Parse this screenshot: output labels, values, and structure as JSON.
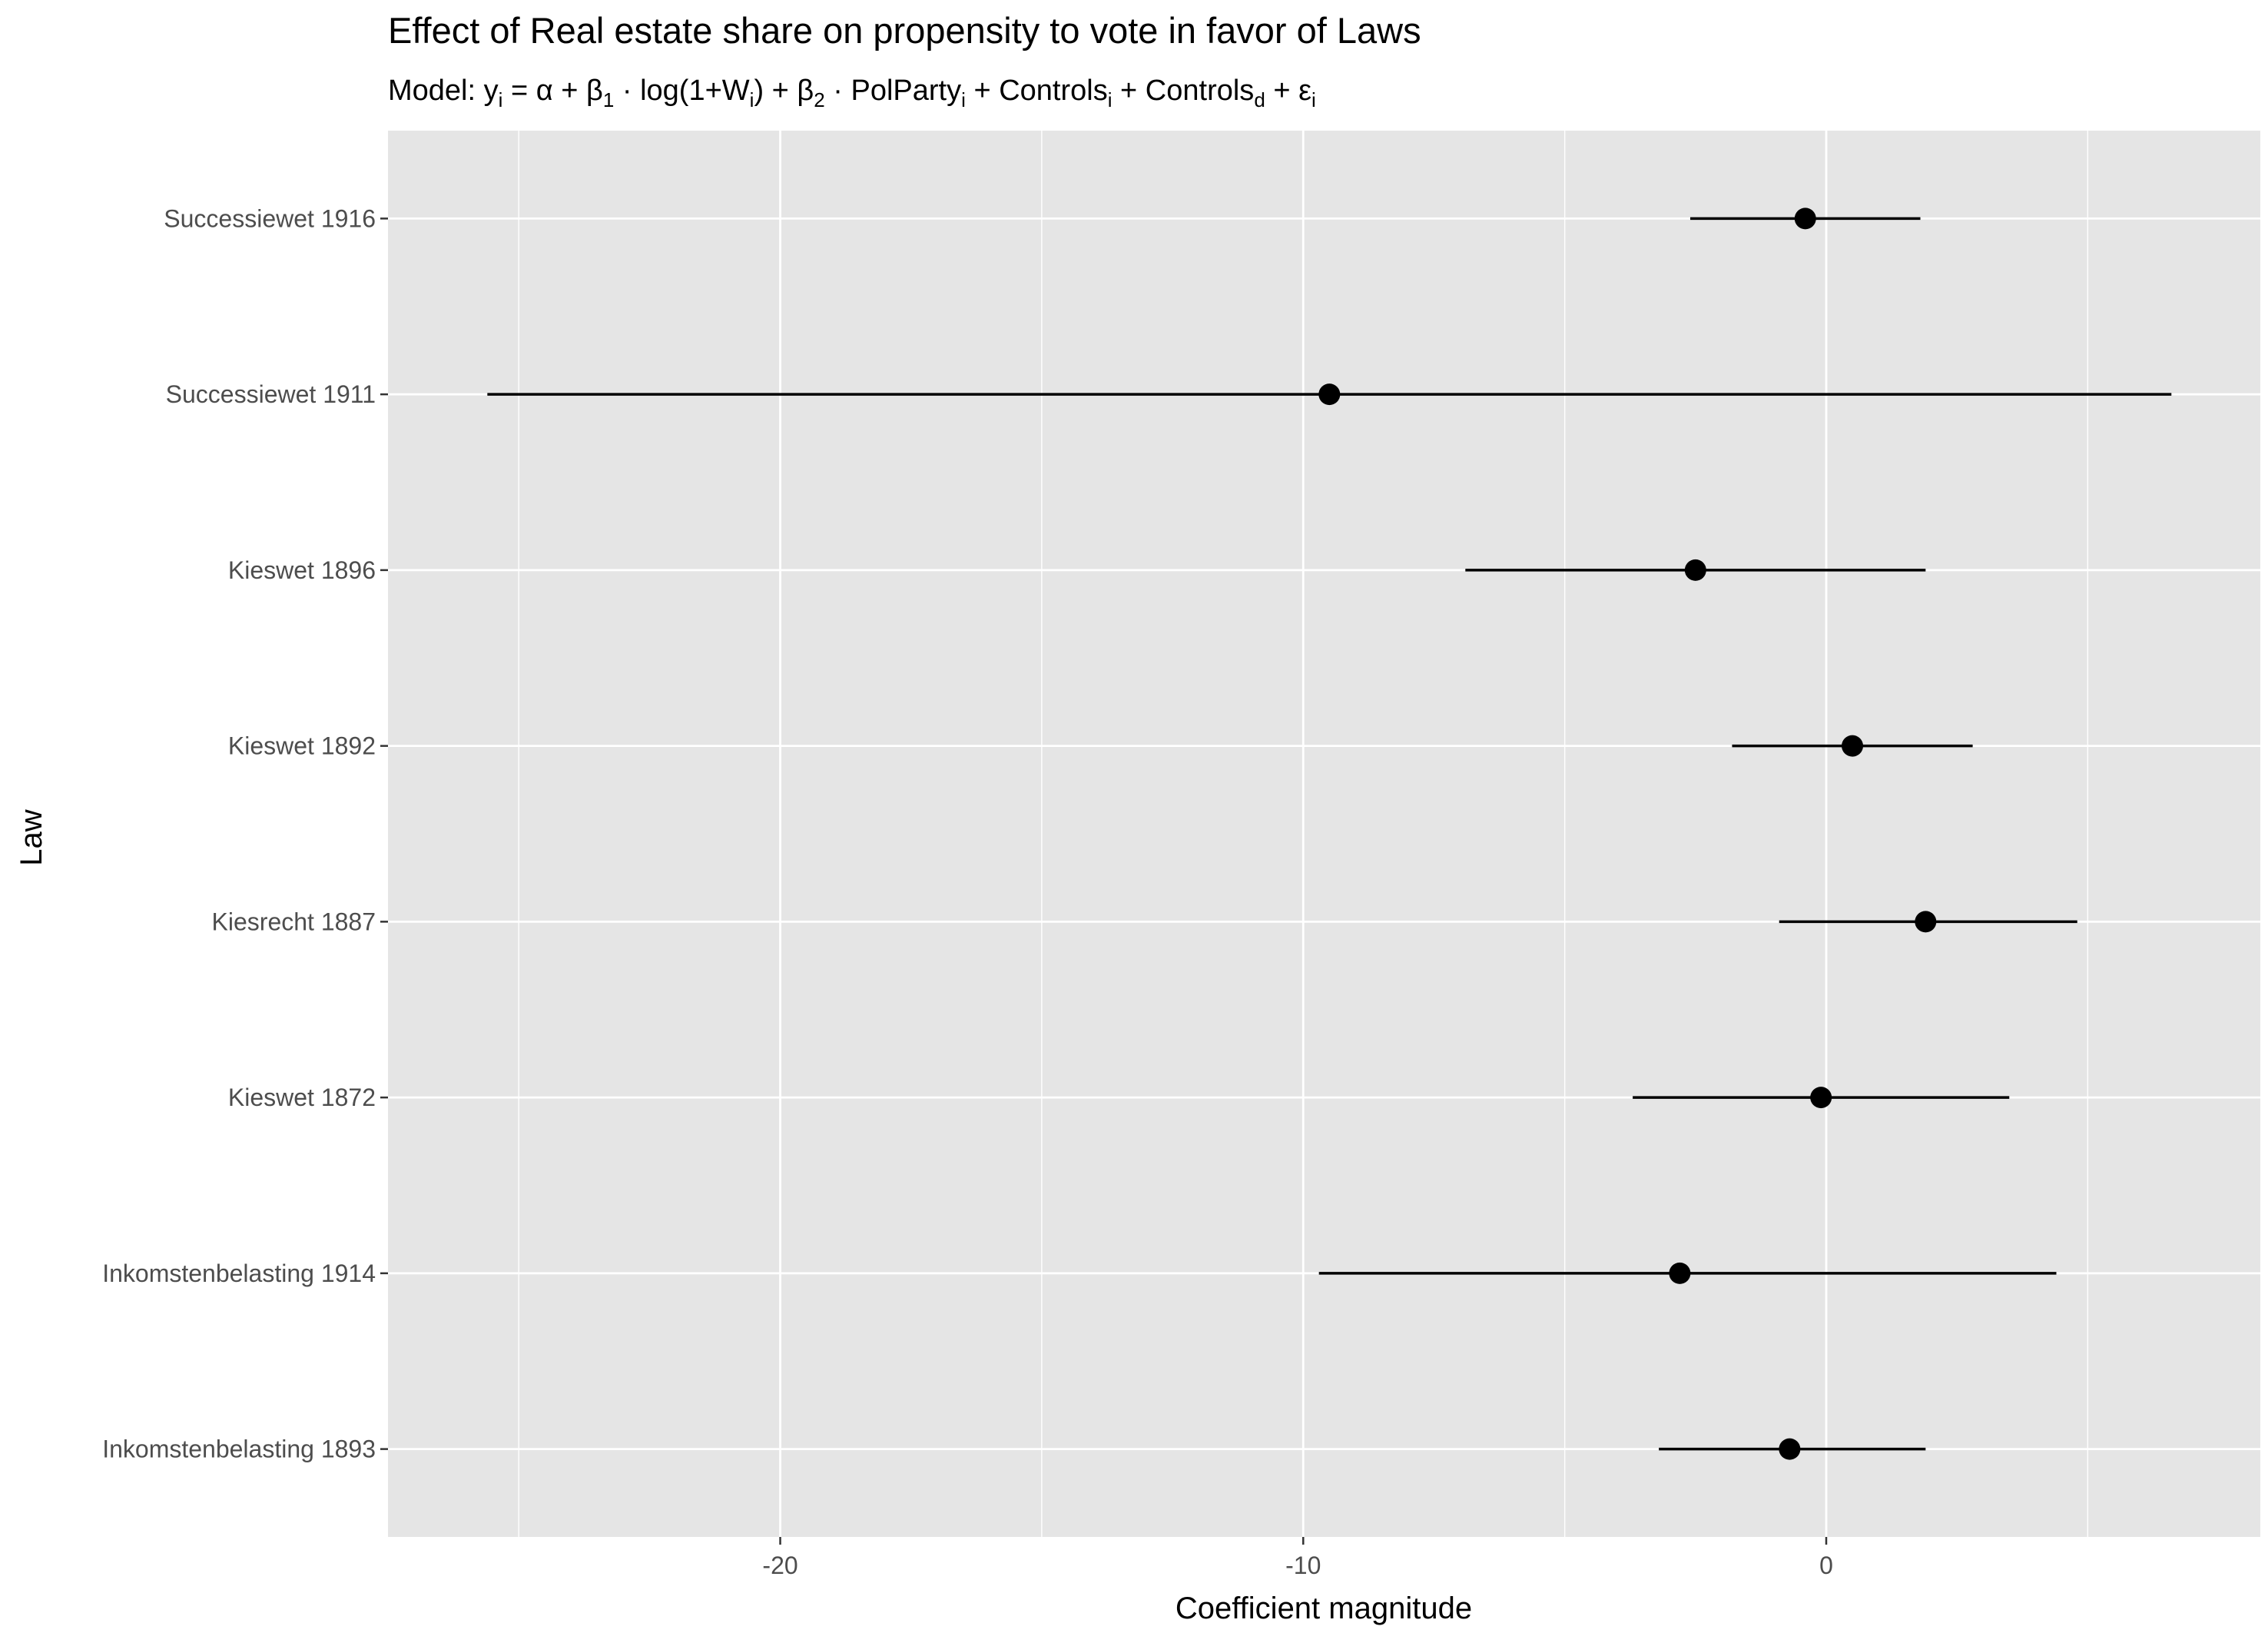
{
  "chart_data": {
    "type": "scatter",
    "title": "Effect of Real estate share on propensity to vote in favor of Laws",
    "subtitle": {
      "prefix": "Model: ",
      "parts": [
        {
          "t": "y"
        },
        {
          "t": "i",
          "sub": true
        },
        {
          "t": " = α + β"
        },
        {
          "t": "1",
          "sub": true
        },
        {
          "t": " · log(1+W"
        },
        {
          "t": "i",
          "sub": true
        },
        {
          "t": ") + β"
        },
        {
          "t": "2",
          "sub": true
        },
        {
          "t": " · PolParty"
        },
        {
          "t": "i",
          "sub": true
        },
        {
          "t": " + Controls"
        },
        {
          "t": "i",
          "sub": true
        },
        {
          "t": " + Controls"
        },
        {
          "t": "d",
          "sub": true
        },
        {
          "t": " + ε"
        },
        {
          "t": "i",
          "sub": true
        }
      ]
    },
    "xlabel": "Coefficient magnitude",
    "ylabel": "Law",
    "xlim": [
      -27.5,
      8.3
    ],
    "x_ticks": [
      -20,
      -10,
      0
    ],
    "grid": true,
    "categories": [
      "Successiewet 1916",
      "Successiewet 1911",
      "Kieswet 1896",
      "Kieswet 1892",
      "Kiesrecht 1887",
      "Kieswet 1872",
      "Inkomstenbelasting 1914",
      "Inkomstenbelasting 1893"
    ],
    "estimates": [
      -0.4,
      -9.5,
      -2.5,
      0.5,
      1.9,
      -0.1,
      -2.8,
      -0.7
    ],
    "lower": [
      -2.6,
      -25.6,
      -6.9,
      -1.8,
      -0.9,
      -3.7,
      -9.7,
      -3.2
    ],
    "upper": [
      1.8,
      6.6,
      1.9,
      2.8,
      4.8,
      3.5,
      4.4,
      1.9
    ],
    "colors": {
      "panel_background": "#e5e5e5",
      "grid": "#ffffff",
      "point": "#000000",
      "tick_label": "#4d4d4d"
    }
  }
}
